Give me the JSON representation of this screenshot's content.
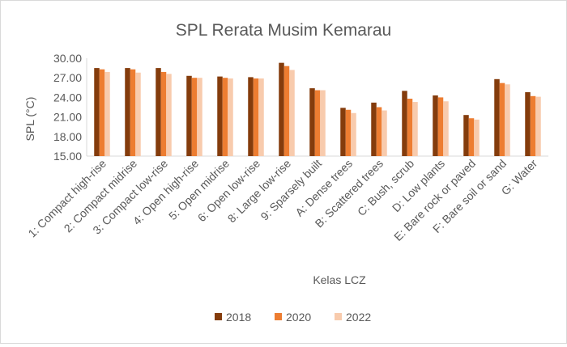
{
  "chart_data": {
    "type": "bar",
    "title": "SPL Rerata Musim Kemarau",
    "xlabel": "Kelas LCZ",
    "ylabel": "SPL (°C)",
    "ylim": [
      15,
      30
    ],
    "yticks": [
      "15.00",
      "18.00",
      "21.00",
      "24.00",
      "27.00",
      "30.00"
    ],
    "ytick_values": [
      15,
      18,
      21,
      24,
      27,
      30
    ],
    "grid": false,
    "legend_position": "bottom",
    "categories": [
      "1: Compact high-rise",
      "2: Compact midrise",
      "3: Compact low-rise",
      "4: Open high-rise",
      "5: Open midrise",
      "6: Open low-rise",
      "8: Large low-rise",
      "9: Sparsely built",
      "A: Dense trees",
      "B: Scattered trees",
      "C: Bush, scrub",
      "D: Low plants",
      "E: Bare rock or paved",
      "F: Bare soil or sand",
      "G: Water"
    ],
    "series": [
      {
        "name": "2018",
        "color": "#843c0c",
        "values": [
          28.5,
          28.5,
          28.5,
          27.3,
          27.2,
          27.1,
          29.3,
          25.4,
          22.4,
          23.2,
          25.0,
          24.3,
          21.3,
          26.8,
          24.8
        ]
      },
      {
        "name": "2020",
        "color": "#ed7d31",
        "values": [
          28.3,
          28.3,
          27.9,
          27.0,
          27.0,
          26.9,
          28.8,
          25.1,
          22.1,
          22.5,
          23.8,
          24.0,
          20.8,
          26.2,
          24.2
        ]
      },
      {
        "name": "2022",
        "color": "#f8cbad",
        "values": [
          27.9,
          27.8,
          27.6,
          27.0,
          26.9,
          26.9,
          28.2,
          25.1,
          21.6,
          22.0,
          23.3,
          23.4,
          20.6,
          26.0,
          24.1
        ]
      }
    ]
  }
}
